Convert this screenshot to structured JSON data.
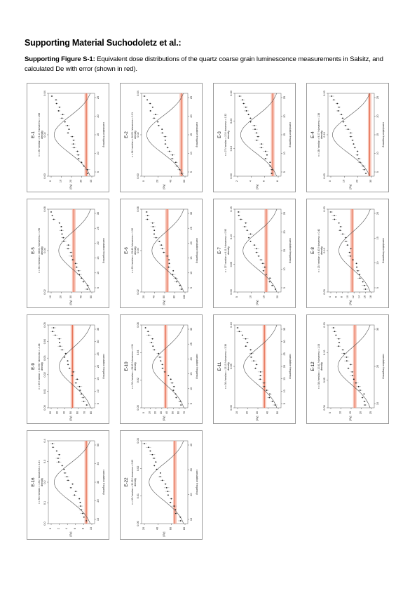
{
  "heading": "Supporting Material Suchodoletz et al.:",
  "caption": {
    "label": "Supporting Figure S-1:",
    "text": " Equivalent dose distributions of the quartz coarse grain luminescence measurements in Salsitz, and calculated De with error (shown in red)."
  },
  "colors": {
    "de_line": "#e05a3a",
    "de_band": "#f5b2a0",
    "points": "#222222",
    "curve": "#555555"
  },
  "axis_text": {
    "density": "density",
    "cumulative": "cumulative frequency",
    "gy": "[Gy]"
  },
  "panels": [
    {
      "id": "E-1",
      "stats": "n = 25 / median = 5.10 / skewness = 1.68",
      "de": 0.18,
      "dens_ticks": [
        "0.00",
        "0.02",
        "0.04"
      ],
      "gy_ticks": [
        "0",
        "10",
        "20",
        "30",
        "40"
      ],
      "cum_ticks": [
        "5",
        "10",
        "15",
        "20",
        "25"
      ]
    },
    {
      "id": "E-2",
      "stats": "n = 24 / median = 36.25 / skewness = 0.21",
      "de": 0.14,
      "dens_ticks": [
        "0.00",
        "0.02",
        "0.04"
      ],
      "gy_ticks": [
        "0",
        "20",
        "40",
        "60"
      ],
      "cum_ticks": [
        "5",
        "10",
        "15",
        "20",
        "25"
      ]
    },
    {
      "id": "E-3",
      "stats": "n = 27 / median = 2.3 / skewness = 1.32",
      "de": 0.18,
      "dens_ticks": [
        "0.00",
        "0.10",
        "0.20",
        "0.30"
      ],
      "gy_ticks": [
        "2",
        "4",
        "6",
        "8"
      ],
      "cum_ticks": [
        "5",
        "10",
        "15",
        "20",
        "25"
      ]
    },
    {
      "id": "E-4",
      "stats": "n = 28 / median = 9.07 / skewness = 1.38",
      "de": 0.1,
      "dens_ticks": [
        "0.00",
        "0.10",
        "0.20"
      ],
      "gy_ticks": [
        "0",
        "10",
        "20",
        "30"
      ],
      "cum_ticks": [
        "5",
        "10",
        "15",
        "20",
        "25"
      ]
    },
    {
      "id": "E-5",
      "stats": "n = 33 / median = 38.60 / skewness = 1.96",
      "de": 0.45,
      "dens_ticks": [
        "0.02",
        "0.04",
        "0.06"
      ],
      "gy_ticks": [
        "10",
        "20",
        "30",
        "40",
        "50"
      ],
      "cum_ticks": [
        "5",
        "10",
        "15",
        "20",
        "25",
        "30"
      ]
    },
    {
      "id": "E-6",
      "stats": "n = 29 / median = 29.43 / skewness = 1.92",
      "de": 0.45,
      "dens_ticks": [
        "0.02",
        "0.04",
        "0.06"
      ],
      "gy_ticks": [
        "20",
        "40",
        "60",
        "80",
        "100"
      ],
      "cum_ticks": [
        "5",
        "10",
        "15",
        "20",
        "25",
        "30"
      ]
    },
    {
      "id": "E-7",
      "stats": "n = 27 / median = 6.11 / skewness = 0.95",
      "de": 0.32,
      "dens_ticks": [
        "0.00",
        "0.05",
        "0.10",
        "0.15"
      ],
      "gy_ticks": [
        "5",
        "10",
        "15",
        "20"
      ],
      "cum_ticks": [
        "5",
        "10",
        "15",
        "20",
        "25"
      ]
    },
    {
      "id": "E-8",
      "stats": "n = 23 / median = 9.43 / skewness = 0.42",
      "de": 0.48,
      "dens_ticks": [
        "0.00",
        "0.10",
        "0.20"
      ],
      "gy_ticks": [
        "4",
        "6",
        "8",
        "10",
        "12",
        "14",
        "16",
        "18"
      ],
      "cum_ticks": [
        "5",
        "10",
        "15",
        "20"
      ]
    },
    {
      "id": "E-9",
      "stats": "n = 35 / median = 40.55 / skewness = -0.44",
      "de": 0.48,
      "dens_ticks": [
        "0.00",
        "0.01",
        "0.02",
        "0.03",
        "0.04",
        "0.05"
      ],
      "gy_ticks": [
        "20",
        "30",
        "40",
        "50",
        "60",
        "70",
        "80"
      ],
      "cum_ticks": [
        "5",
        "10",
        "15",
        "20",
        "25",
        "30",
        "35"
      ]
    },
    {
      "id": "E-10",
      "stats": "n = 33 / median = 29.65 / skewness = 0.91",
      "de": 0.48,
      "dens_ticks": [
        "0.00",
        "0.02",
        "0.04",
        "0.06"
      ],
      "gy_ticks": [
        "0",
        "10",
        "20",
        "30",
        "40",
        "50",
        "60",
        "70"
      ],
      "cum_ticks": [
        "5",
        "10",
        "15",
        "20",
        "25",
        "30"
      ]
    },
    {
      "id": "E-11",
      "stats": "n = 36 / median = 12.13 / skewness = 3.36",
      "de": 0.36,
      "dens_ticks": [
        "0.00",
        "0.05",
        "0.10"
      ],
      "gy_ticks": [
        "10",
        "20",
        "30",
        "40",
        "50"
      ],
      "cum_ticks": [
        "5",
        "10",
        "15",
        "20",
        "25",
        "30",
        "35"
      ]
    },
    {
      "id": "E-12",
      "stats": "n = 38 / median = 10.61 / skewness = 1.08",
      "de": 0.42,
      "dens_ticks": [
        "0.00",
        "0.05",
        "0.10",
        "0.15"
      ],
      "gy_ticks": [
        "5",
        "10",
        "15",
        "20",
        "25"
      ],
      "cum_ticks": [
        "10",
        "20",
        "30"
      ]
    },
    {
      "id": "E-16",
      "stats": "n = 54 / median = 1.61 / skewness = 1.41",
      "de": 0.18,
      "dens_ticks": [
        "0.0",
        "0.1",
        "0.2",
        "0.3",
        "0.4"
      ],
      "gy_ticks": [
        "0",
        "2",
        "4",
        "6",
        "8",
        "10"
      ],
      "cum_ticks": [
        "10",
        "20",
        "30",
        "40",
        "50"
      ]
    },
    {
      "id": "E-22",
      "stats": "n = 43 / median = 30.35 / skewness = 0.63",
      "de": 0.28,
      "dens_ticks": [
        "0.00",
        "0.01",
        "0.02",
        "0.03"
      ],
      "gy_ticks": [
        "20",
        "40",
        "60",
        "80"
      ],
      "cum_ticks": [
        "10",
        "20",
        "30",
        "40"
      ]
    }
  ]
}
